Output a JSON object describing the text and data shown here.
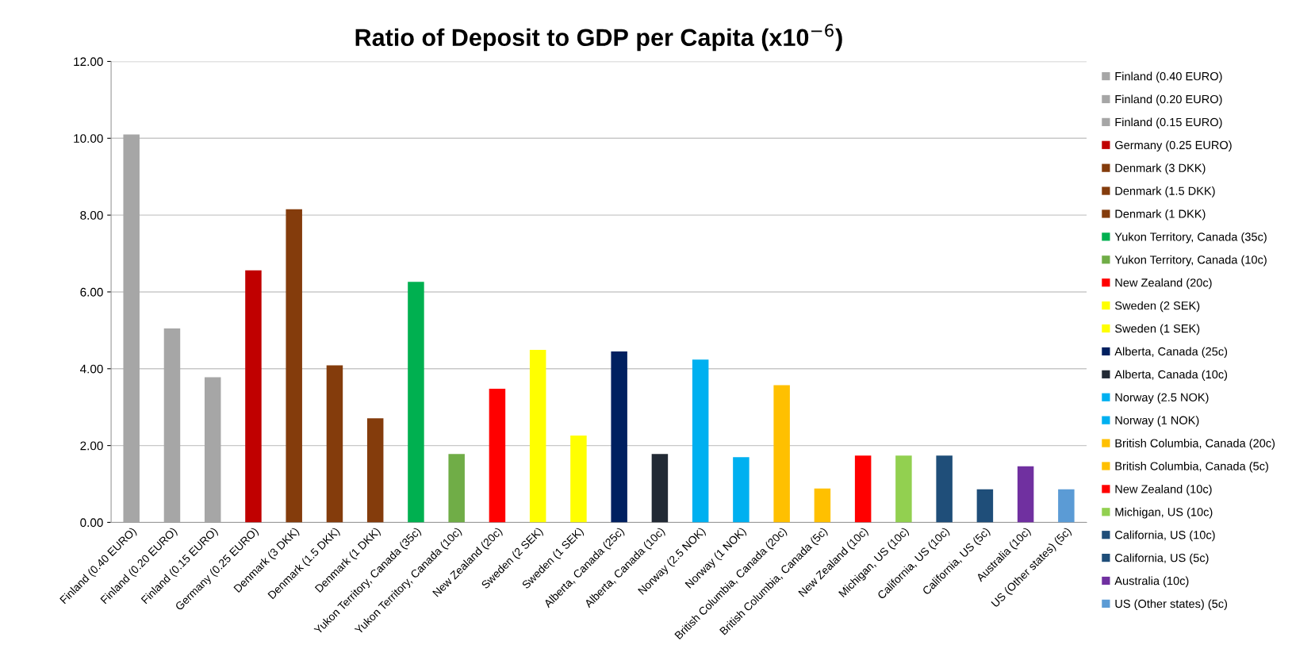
{
  "chart_data": {
    "type": "bar",
    "title": "Ratio of Deposit to GDP per Capita (x10$^{−6}$)",
    "categories": [
      "Finland (0.40 EURO)",
      "Finland (0.20 EURO)",
      "Finland (0.15 EURO)",
      "Germany (0.25 EURO)",
      "Denmark (3 DKK)",
      "Denmark (1.5 DKK)",
      "Denmark (1 DKK)",
      "Yukon Territory, Canada (35c)",
      "Yukon Territory, Canada (10c)",
      "New Zealand (20c)",
      "Sweden (2 SEK)",
      "Sweden (1 SEK)",
      "Alberta, Canada (25c)",
      "Alberta, Canada (10c)",
      "Norway (2.5 NOK)",
      "Norway (1 NOK)",
      "British Columbia, Canada (20c)",
      "British Columbia, Canada (5c)",
      "New Zealand (10c)",
      "Michigan, US (10c)",
      "California, US (10c)",
      "California, US (5c)",
      "Australia (10c)",
      "US (Other states) (5c)"
    ],
    "series": [
      {
        "name": "Finland (0.40 EURO)",
        "color": "#a6a6a6",
        "values": [
          10.1,
          null,
          null,
          null,
          null,
          null,
          null,
          null,
          null,
          null,
          null,
          null,
          null,
          null,
          null,
          null,
          null,
          null,
          null,
          null,
          null,
          null,
          null,
          null
        ]
      },
      {
        "name": "Finland (0.20 EURO)",
        "color": "#a6a6a6",
        "values": [
          null,
          5.05,
          null,
          null,
          null,
          null,
          null,
          null,
          null,
          null,
          null,
          null,
          null,
          null,
          null,
          null,
          null,
          null,
          null,
          null,
          null,
          null,
          null,
          null
        ]
      },
      {
        "name": "Finland (0.15 EURO)",
        "color": "#a6a6a6",
        "values": [
          null,
          null,
          3.78,
          null,
          null,
          null,
          null,
          null,
          null,
          null,
          null,
          null,
          null,
          null,
          null,
          null,
          null,
          null,
          null,
          null,
          null,
          null,
          null,
          null
        ]
      },
      {
        "name": "Germany (0.25 EURO)",
        "color": "#c00000",
        "values": [
          null,
          null,
          null,
          6.56,
          null,
          null,
          null,
          null,
          null,
          null,
          null,
          null,
          null,
          null,
          null,
          null,
          null,
          null,
          null,
          null,
          null,
          null,
          null,
          null
        ]
      },
      {
        "name": "Denmark (3 DKK)",
        "color": "#843c0c",
        "values": [
          null,
          null,
          null,
          null,
          8.15,
          null,
          null,
          null,
          null,
          null,
          null,
          null,
          null,
          null,
          null,
          null,
          null,
          null,
          null,
          null,
          null,
          null,
          null,
          null
        ]
      },
      {
        "name": "Denmark (1.5 DKK)",
        "color": "#843c0c",
        "values": [
          null,
          null,
          null,
          null,
          null,
          4.09,
          null,
          null,
          null,
          null,
          null,
          null,
          null,
          null,
          null,
          null,
          null,
          null,
          null,
          null,
          null,
          null,
          null,
          null
        ]
      },
      {
        "name": "Denmark (1 DKK)",
        "color": "#843c0c",
        "values": [
          null,
          null,
          null,
          null,
          null,
          null,
          2.71,
          null,
          null,
          null,
          null,
          null,
          null,
          null,
          null,
          null,
          null,
          null,
          null,
          null,
          null,
          null,
          null,
          null
        ]
      },
      {
        "name": "Yukon Territory, Canada (35c)",
        "color": "#00b050",
        "values": [
          null,
          null,
          null,
          null,
          null,
          null,
          null,
          6.26,
          null,
          null,
          null,
          null,
          null,
          null,
          null,
          null,
          null,
          null,
          null,
          null,
          null,
          null,
          null,
          null
        ]
      },
      {
        "name": "Yukon Territory, Canada (10c)",
        "color": "#70ad47",
        "values": [
          null,
          null,
          null,
          null,
          null,
          null,
          null,
          null,
          1.78,
          null,
          null,
          null,
          null,
          null,
          null,
          null,
          null,
          null,
          null,
          null,
          null,
          null,
          null,
          null
        ]
      },
      {
        "name": "New Zealand (20c)",
        "color": "#ff0000",
        "values": [
          null,
          null,
          null,
          null,
          null,
          null,
          null,
          null,
          null,
          3.48,
          null,
          null,
          null,
          null,
          null,
          null,
          null,
          null,
          null,
          null,
          null,
          null,
          null,
          null
        ]
      },
      {
        "name": "Sweden (2 SEK)",
        "color": "#ffff00",
        "values": [
          null,
          null,
          null,
          null,
          null,
          null,
          null,
          null,
          null,
          null,
          4.49,
          null,
          null,
          null,
          null,
          null,
          null,
          null,
          null,
          null,
          null,
          null,
          null,
          null
        ]
      },
      {
        "name": "Sweden (1 SEK)",
        "color": "#ffff00",
        "values": [
          null,
          null,
          null,
          null,
          null,
          null,
          null,
          null,
          null,
          null,
          null,
          2.26,
          null,
          null,
          null,
          null,
          null,
          null,
          null,
          null,
          null,
          null,
          null,
          null
        ]
      },
      {
        "name": "Alberta, Canada (25c)",
        "color": "#002060",
        "values": [
          null,
          null,
          null,
          null,
          null,
          null,
          null,
          null,
          null,
          null,
          null,
          null,
          4.45,
          null,
          null,
          null,
          null,
          null,
          null,
          null,
          null,
          null,
          null,
          null
        ]
      },
      {
        "name": "Alberta, Canada (10c)",
        "color": "#222a35",
        "values": [
          null,
          null,
          null,
          null,
          null,
          null,
          null,
          null,
          null,
          null,
          null,
          null,
          null,
          1.78,
          null,
          null,
          null,
          null,
          null,
          null,
          null,
          null,
          null,
          null
        ]
      },
      {
        "name": "Norway (2.5 NOK)",
        "color": "#00b0f0",
        "values": [
          null,
          null,
          null,
          null,
          null,
          null,
          null,
          null,
          null,
          null,
          null,
          null,
          null,
          null,
          4.24,
          null,
          null,
          null,
          null,
          null,
          null,
          null,
          null,
          null
        ]
      },
      {
        "name": "Norway (1 NOK)",
        "color": "#00b0f0",
        "values": [
          null,
          null,
          null,
          null,
          null,
          null,
          null,
          null,
          null,
          null,
          null,
          null,
          null,
          null,
          null,
          1.7,
          null,
          null,
          null,
          null,
          null,
          null,
          null,
          null
        ]
      },
      {
        "name": "British Columbia, Canada (20c)",
        "color": "#ffc000",
        "values": [
          null,
          null,
          null,
          null,
          null,
          null,
          null,
          null,
          null,
          null,
          null,
          null,
          null,
          null,
          null,
          null,
          3.57,
          null,
          null,
          null,
          null,
          null,
          null,
          null
        ]
      },
      {
        "name": "British Columbia, Canada (5c)",
        "color": "#ffc000",
        "values": [
          null,
          null,
          null,
          null,
          null,
          null,
          null,
          null,
          null,
          null,
          null,
          null,
          null,
          null,
          null,
          null,
          null,
          0.88,
          null,
          null,
          null,
          null,
          null,
          null
        ]
      },
      {
        "name": "New Zealand (10c)",
        "color": "#ff0000",
        "values": [
          null,
          null,
          null,
          null,
          null,
          null,
          null,
          null,
          null,
          null,
          null,
          null,
          null,
          null,
          null,
          null,
          null,
          null,
          1.74,
          null,
          null,
          null,
          null,
          null
        ]
      },
      {
        "name": "Michigan, US (10c)",
        "color": "#92d050",
        "values": [
          null,
          null,
          null,
          null,
          null,
          null,
          null,
          null,
          null,
          null,
          null,
          null,
          null,
          null,
          null,
          null,
          null,
          null,
          null,
          1.74,
          null,
          null,
          null,
          null
        ]
      },
      {
        "name": "California, US (10c)",
        "color": "#1f4e79",
        "values": [
          null,
          null,
          null,
          null,
          null,
          null,
          null,
          null,
          null,
          null,
          null,
          null,
          null,
          null,
          null,
          null,
          null,
          null,
          null,
          null,
          1.74,
          null,
          null,
          null
        ]
      },
      {
        "name": "California, US (5c)",
        "color": "#1f4e79",
        "values": [
          null,
          null,
          null,
          null,
          null,
          null,
          null,
          null,
          null,
          null,
          null,
          null,
          null,
          null,
          null,
          null,
          null,
          null,
          null,
          null,
          null,
          0.86,
          null,
          null
        ]
      },
      {
        "name": "Australia (10c)",
        "color": "#7030a0",
        "values": [
          null,
          null,
          null,
          null,
          null,
          null,
          null,
          null,
          null,
          null,
          null,
          null,
          null,
          null,
          null,
          null,
          null,
          null,
          null,
          null,
          null,
          null,
          1.46,
          null
        ]
      },
      {
        "name": "US (Other states) (5c)",
        "color": "#5b9bd5",
        "values": [
          null,
          null,
          null,
          null,
          null,
          null,
          null,
          null,
          null,
          null,
          null,
          null,
          null,
          null,
          null,
          null,
          null,
          null,
          null,
          null,
          null,
          null,
          null,
          0.86
        ]
      }
    ],
    "ylim": [
      0,
      12
    ],
    "yticks": [
      {
        "value": 0,
        "label": "0.00"
      },
      {
        "value": 2,
        "label": "2.00"
      },
      {
        "value": 4,
        "label": "4.00"
      },
      {
        "value": 6,
        "label": "6.00"
      },
      {
        "value": 8,
        "label": "8.00"
      },
      {
        "value": 10,
        "label": "10.00"
      },
      {
        "value": 12,
        "label": "12.00"
      }
    ],
    "grid": "y",
    "legend": "right"
  }
}
